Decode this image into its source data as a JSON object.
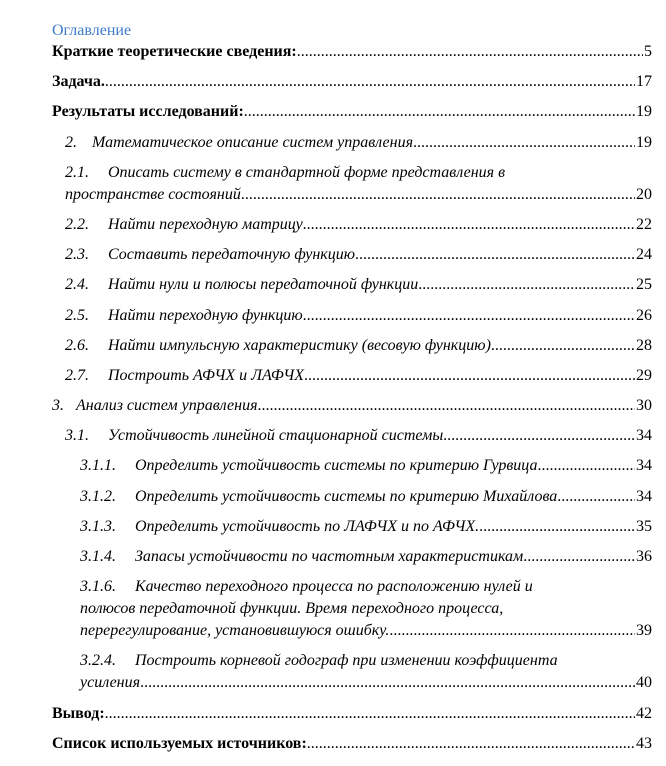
{
  "title": "Оглавление",
  "entries": [
    {
      "level": 0,
      "num": "",
      "lines": [
        "Краткие теоретические сведения: "
      ],
      "page": "5"
    },
    {
      "level": 0,
      "num": "",
      "lines": [
        "Задача."
      ],
      "page": "17"
    },
    {
      "level": 0,
      "num": "",
      "lines": [
        "Результаты исследований: "
      ],
      "page": "19"
    },
    {
      "level": 1,
      "num": "2.",
      "lines": [
        "Математическое описание систем управления "
      ],
      "page": "19"
    },
    {
      "level": 1,
      "num": "2.1.",
      "lines": [
        "Описать систему в стандартной форме представления в",
        "пространстве состояний"
      ],
      "page": "20"
    },
    {
      "level": 1,
      "num": "2.2.",
      "lines": [
        "Найти переходную матрицу "
      ],
      "page": "22"
    },
    {
      "level": 1,
      "num": "2.3.",
      "lines": [
        "Составить передаточную функцию "
      ],
      "page": "24"
    },
    {
      "level": 1,
      "num": "2.4.",
      "lines": [
        "Найти нули и полюсы передаточной функции"
      ],
      "page": "25"
    },
    {
      "level": 1,
      "num": "2.5.",
      "lines": [
        "Найти переходную функцию "
      ],
      "page": "26"
    },
    {
      "level": 1,
      "num": "2.6.",
      "lines": [
        "Найти импульсную характеристику (весовую функцию)"
      ],
      "page": "28"
    },
    {
      "level": 1,
      "num": "2.7.",
      "lines": [
        "Построить АФЧХ и ЛАФЧХ "
      ],
      "page": "29"
    },
    {
      "level": 1,
      "num": "3.",
      "lines": [
        "Анализ систем управления "
      ],
      "page": "30"
    },
    {
      "level": 1,
      "num": "3.1.",
      "lines": [
        "Устойчивость линейной стационарной системы "
      ],
      "page": "34"
    },
    {
      "level": 2,
      "num": "3.1.1.",
      "lines": [
        "Определить устойчивость системы по критерию Гурвица "
      ],
      "page": "34"
    },
    {
      "level": 2,
      "num": "3.1.2.",
      "lines": [
        "Определить устойчивость системы по критерию Михайлова"
      ],
      "page": "34"
    },
    {
      "level": 2,
      "num": "3.1.3.",
      "lines": [
        "Определить устойчивость по ЛАФЧХ и по АФЧХ."
      ],
      "page": "35"
    },
    {
      "level": 2,
      "num": "3.1.4.",
      "lines": [
        "Запасы устойчивости по частотным характеристикам "
      ],
      "page": "36"
    },
    {
      "level": 2,
      "num": "3.1.6.",
      "lines": [
        "Качество переходного процесса по расположению нулей и",
        "полюсов передаточной функции. Время переходного процесса,",
        "перерегулирование, установившуюся ошибку."
      ],
      "page": "39"
    },
    {
      "level": 2,
      "num": "3.2.4.",
      "lines": [
        "Построить корневой годограф при изменении коэффициента",
        "усиления"
      ],
      "page": "40"
    },
    {
      "level": 0,
      "num": "",
      "lines": [
        "Вывод:"
      ],
      "page": "42"
    },
    {
      "level": 0,
      "num": "",
      "lines": [
        "Список используемых источников: "
      ],
      "page": "43"
    }
  ]
}
